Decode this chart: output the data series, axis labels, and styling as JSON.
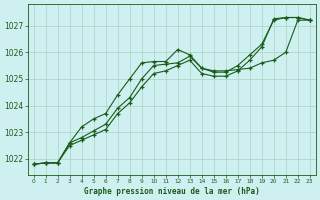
{
  "title": "Graphe pression niveau de la mer (hPa)",
  "bg_color": "#cef0f0",
  "grid_color": "#b0d8c8",
  "line_color": "#1a5c1a",
  "xlim": [
    -0.5,
    23.5
  ],
  "ylim": [
    1021.4,
    1027.8
  ],
  "yticks": [
    1022,
    1023,
    1024,
    1025,
    1026,
    1027
  ],
  "xticks": [
    0,
    1,
    2,
    3,
    4,
    5,
    6,
    7,
    8,
    9,
    10,
    11,
    12,
    13,
    14,
    15,
    16,
    17,
    18,
    19,
    20,
    21,
    22,
    23
  ],
  "series": [
    {
      "y": [
        1021.8,
        1021.85,
        1021.85,
        1022.6,
        1023.2,
        1023.5,
        1023.7,
        1024.4,
        1025.0,
        1025.6,
        1025.65,
        1025.65,
        1026.1,
        1025.9,
        1025.4,
        1025.3,
        1025.3,
        1025.35,
        1025.4,
        1025.6,
        1025.7,
        1026.0,
        1027.2,
        1027.2
      ],
      "style": "solid"
    },
    {
      "y": [
        1021.8,
        1021.85,
        1021.85,
        1022.6,
        1022.8,
        1023.05,
        1023.3,
        1023.9,
        1024.3,
        1025.0,
        1025.5,
        1025.55,
        1025.6,
        1025.85,
        1025.4,
        1025.25,
        1025.25,
        1025.5,
        1025.9,
        1026.3,
        1027.2,
        1027.3,
        1027.3,
        1027.2
      ],
      "style": "dashed"
    },
    {
      "y": [
        1021.8,
        1021.85,
        1021.85,
        1022.5,
        1022.7,
        1022.9,
        1023.1,
        1023.7,
        1024.1,
        1024.7,
        1025.2,
        1025.3,
        1025.5,
        1025.7,
        1025.2,
        1025.1,
        1025.1,
        1025.3,
        1025.7,
        1026.2,
        1027.25,
        1027.3,
        1027.3,
        1027.2
      ],
      "style": "dotted"
    }
  ]
}
